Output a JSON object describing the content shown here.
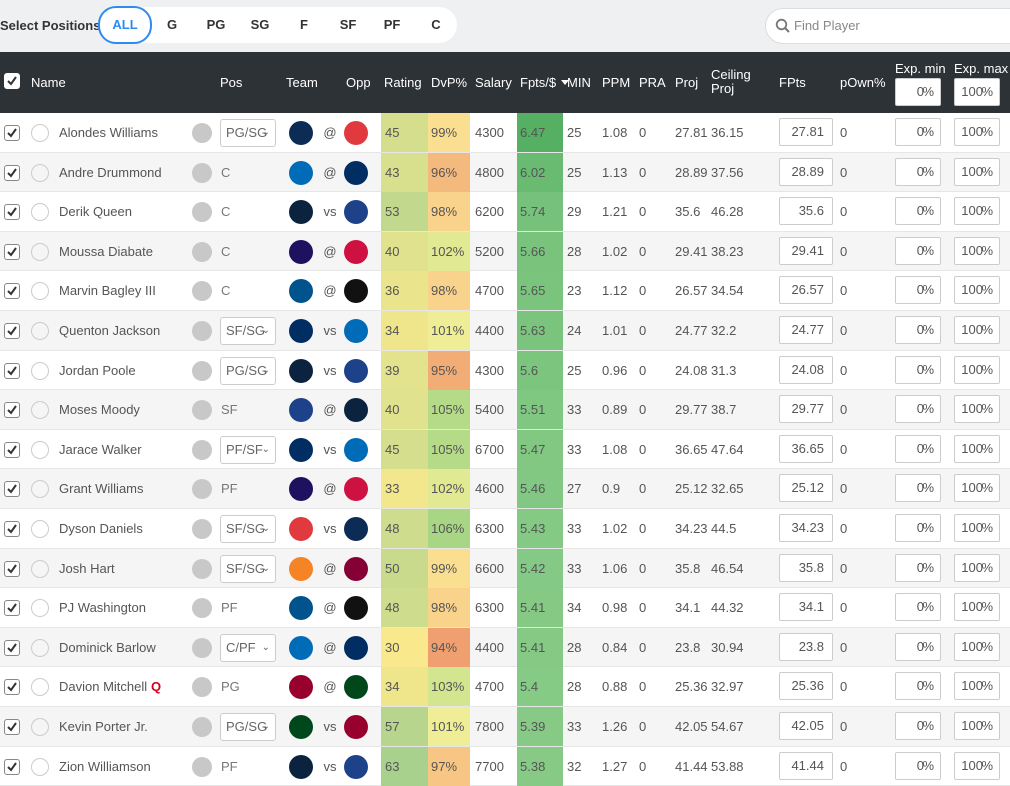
{
  "filter": {
    "label": "Select Positions",
    "options": [
      "ALL",
      "G",
      "PG",
      "SG",
      "F",
      "SF",
      "PF",
      "C"
    ],
    "search_placeholder": "Find Player"
  },
  "table": {
    "headers": [
      "Name",
      "Pos",
      "Team",
      "Opp",
      "Rating",
      "DvP%",
      "Salary",
      "Fpts/$",
      "MIN",
      "PPM",
      "PRA",
      "Proj",
      "Ceiling Proj",
      "FPts",
      "pOwn%",
      "Exp. min",
      "Exp. max"
    ],
    "unit": "%",
    "exp_min_default": 0,
    "exp_max_default": 100,
    "rows": [
      {
        "name": "Alondes Williams",
        "pos": "PG/SG",
        "pos_select": true,
        "team_color": "#0c2c56",
        "loc": "@",
        "opp_color": "#e03a3e",
        "rating": 45,
        "dvp": {
          "value": 99,
          "label": "99%"
        },
        "salary": 4300,
        "fpts_per_dollar": 6.47,
        "min": 25,
        "ppm": 1.08,
        "pra": 0,
        "proj": 27.81,
        "ceiling": 36.15,
        "fpts": 27.81,
        "pown": 0,
        "exp_min": 0,
        "exp_max": 100
      },
      {
        "name": "Andre Drummond",
        "pos": "C",
        "pos_select": false,
        "team_color": "#006bb6",
        "loc": "@",
        "opp_color": "#002d62",
        "rating": 43,
        "dvp": {
          "value": 96,
          "label": "96%"
        },
        "salary": 4800,
        "fpts_per_dollar": 6.02,
        "min": 25,
        "ppm": 1.13,
        "pra": 0,
        "proj": 28.89,
        "ceiling": 37.56,
        "fpts": 28.89,
        "pown": 0,
        "exp_min": 0,
        "exp_max": 100
      },
      {
        "name": "Derik Queen",
        "pos": "C",
        "pos_select": false,
        "team_color": "#0c2340",
        "loc": "vs",
        "opp_color": "#1d428a",
        "rating": 53,
        "dvp": {
          "value": 98,
          "label": "98%"
        },
        "salary": 6200,
        "fpts_per_dollar": 5.74,
        "min": 29,
        "ppm": 1.21,
        "pra": 0,
        "proj": 35.6,
        "ceiling": 46.28,
        "fpts": 35.6,
        "pown": 0,
        "exp_min": 0,
        "exp_max": 100
      },
      {
        "name": "Moussa Diabate",
        "pos": "C",
        "pos_select": false,
        "team_color": "#1d1160",
        "loc": "@",
        "opp_color": "#ce1141",
        "rating": 40,
        "dvp": {
          "value": 102,
          "label": "102%"
        },
        "salary": 5200,
        "fpts_per_dollar": 5.66,
        "min": 28,
        "ppm": 1.02,
        "pra": 0,
        "proj": 29.41,
        "ceiling": 38.23,
        "fpts": 29.41,
        "pown": 0,
        "exp_min": 0,
        "exp_max": 100
      },
      {
        "name": "Marvin Bagley III",
        "pos": "C",
        "pos_select": false,
        "team_color": "#00538c",
        "loc": "@",
        "opp_color": "#111111",
        "rating": 36,
        "dvp": {
          "value": 98,
          "label": "98%"
        },
        "salary": 4700,
        "fpts_per_dollar": 5.65,
        "min": 23,
        "ppm": 1.12,
        "pra": 0,
        "proj": 26.57,
        "ceiling": 34.54,
        "fpts": 26.57,
        "pown": 0,
        "exp_min": 0,
        "exp_max": 100
      },
      {
        "name": "Quenton Jackson",
        "pos": "SF/SG",
        "pos_select": true,
        "team_color": "#002d62",
        "loc": "vs",
        "opp_color": "#006bb6",
        "rating": 34,
        "dvp": {
          "value": 101,
          "label": "101%"
        },
        "salary": 4400,
        "fpts_per_dollar": 5.63,
        "min": 24,
        "ppm": 1.01,
        "pra": 0,
        "proj": 24.77,
        "ceiling": 32.2,
        "fpts": 24.77,
        "pown": 0,
        "exp_min": 0,
        "exp_max": 100
      },
      {
        "name": "Jordan Poole",
        "pos": "PG/SG",
        "pos_select": true,
        "team_color": "#0c2340",
        "loc": "vs",
        "opp_color": "#1d428a",
        "rating": 39,
        "dvp": {
          "value": 95,
          "label": "95%"
        },
        "salary": 4300,
        "fpts_per_dollar": 5.6,
        "min": 25,
        "ppm": 0.96,
        "pra": 0,
        "proj": 24.08,
        "ceiling": 31.3,
        "fpts": 24.08,
        "pown": 0,
        "exp_min": 0,
        "exp_max": 100
      },
      {
        "name": "Moses Moody",
        "pos": "SF",
        "pos_select": false,
        "team_color": "#1d428a",
        "loc": "@",
        "opp_color": "#0c2340",
        "rating": 40,
        "dvp": {
          "value": 105,
          "label": "105%"
        },
        "salary": 5400,
        "fpts_per_dollar": 5.51,
        "min": 33,
        "ppm": 0.89,
        "pra": 0,
        "proj": 29.77,
        "ceiling": 38.7,
        "fpts": 29.77,
        "pown": 0,
        "exp_min": 0,
        "exp_max": 100
      },
      {
        "name": "Jarace Walker",
        "pos": "PF/SF",
        "pos_select": true,
        "team_color": "#002d62",
        "loc": "vs",
        "opp_color": "#006bb6",
        "rating": 45,
        "dvp": {
          "value": 105,
          "label": "105%"
        },
        "salary": 6700,
        "fpts_per_dollar": 5.47,
        "min": 33,
        "ppm": 1.08,
        "pra": 0,
        "proj": 36.65,
        "ceiling": 47.64,
        "fpts": 36.65,
        "pown": 0,
        "exp_min": 0,
        "exp_max": 100
      },
      {
        "name": "Grant Williams",
        "pos": "PF",
        "pos_select": false,
        "team_color": "#1d1160",
        "loc": "@",
        "opp_color": "#ce1141",
        "rating": 33,
        "dvp": {
          "value": 102,
          "label": "102%"
        },
        "salary": 4600,
        "fpts_per_dollar": 5.46,
        "min": 27,
        "ppm": 0.9,
        "pra": 0,
        "proj": 25.12,
        "ceiling": 32.65,
        "fpts": 25.12,
        "pown": 0,
        "exp_min": 0,
        "exp_max": 100
      },
      {
        "name": "Dyson Daniels",
        "pos": "SF/SG",
        "pos_select": true,
        "team_color": "#e03a3e",
        "loc": "vs",
        "opp_color": "#0c2c56",
        "rating": 48,
        "dvp": {
          "value": 106,
          "label": "106%"
        },
        "salary": 6300,
        "fpts_per_dollar": 5.43,
        "min": 33,
        "ppm": 1.02,
        "pra": 0,
        "proj": 34.23,
        "ceiling": 44.5,
        "fpts": 34.23,
        "pown": 0,
        "exp_min": 0,
        "exp_max": 100
      },
      {
        "name": "Josh Hart",
        "pos": "SF/SG",
        "pos_select": true,
        "team_color": "#f58426",
        "loc": "@",
        "opp_color": "#860038",
        "rating": 50,
        "dvp": {
          "value": 99,
          "label": "99%"
        },
        "salary": 6600,
        "fpts_per_dollar": 5.42,
        "min": 33,
        "ppm": 1.06,
        "pra": 0,
        "proj": 35.8,
        "ceiling": 46.54,
        "fpts": 35.8,
        "pown": 0,
        "exp_min": 0,
        "exp_max": 100
      },
      {
        "name": "PJ Washington",
        "pos": "PF",
        "pos_select": false,
        "team_color": "#00538c",
        "loc": "@",
        "opp_color": "#111111",
        "rating": 48,
        "dvp": {
          "value": 98,
          "label": "98%"
        },
        "salary": 6300,
        "fpts_per_dollar": 5.41,
        "min": 34,
        "ppm": 0.98,
        "pra": 0,
        "proj": 34.1,
        "ceiling": 44.32,
        "fpts": 34.1,
        "pown": 0,
        "exp_min": 0,
        "exp_max": 100
      },
      {
        "name": "Dominick Barlow",
        "pos": "C/PF",
        "pos_select": true,
        "team_color": "#006bb6",
        "loc": "@",
        "opp_color": "#002d62",
        "rating": 30,
        "dvp": {
          "value": 94,
          "label": "94%"
        },
        "salary": 4400,
        "fpts_per_dollar": 5.41,
        "min": 28,
        "ppm": 0.84,
        "pra": 0,
        "proj": 23.8,
        "ceiling": 30.94,
        "fpts": 23.8,
        "pown": 0,
        "exp_min": 0,
        "exp_max": 100
      },
      {
        "name": "Davion Mitchell",
        "status": "Q",
        "pos": "PG",
        "pos_select": false,
        "team_color": "#98002e",
        "loc": "@",
        "opp_color": "#00471b",
        "rating": 34,
        "dvp": {
          "value": 103,
          "label": "103%"
        },
        "salary": 4700,
        "fpts_per_dollar": 5.4,
        "min": 28,
        "ppm": 0.88,
        "pra": 0,
        "proj": 25.36,
        "ceiling": 32.97,
        "fpts": 25.36,
        "pown": 0,
        "exp_min": 0,
        "exp_max": 100
      },
      {
        "name": "Kevin Porter Jr.",
        "pos": "PG/SG",
        "pos_select": true,
        "team_color": "#00471b",
        "loc": "vs",
        "opp_color": "#98002e",
        "rating": 57,
        "dvp": {
          "value": 101,
          "label": "101%"
        },
        "salary": 7800,
        "fpts_per_dollar": 5.39,
        "min": 33,
        "ppm": 1.26,
        "pra": 0,
        "proj": 42.05,
        "ceiling": 54.67,
        "fpts": 42.05,
        "pown": 0,
        "exp_min": 0,
        "exp_max": 100
      },
      {
        "name": "Zion Williamson",
        "pos": "PF",
        "pos_select": false,
        "team_color": "#0c2340",
        "loc": "vs",
        "opp_color": "#1d428a",
        "rating": 63,
        "dvp": {
          "value": 97,
          "label": "97%"
        },
        "salary": 7700,
        "fpts_per_dollar": 5.38,
        "min": 32,
        "ppm": 1.27,
        "pra": 0,
        "proj": 41.44,
        "ceiling": 53.88,
        "fpts": 41.44,
        "pown": 0,
        "exp_min": 0,
        "exp_max": 100
      }
    ]
  }
}
